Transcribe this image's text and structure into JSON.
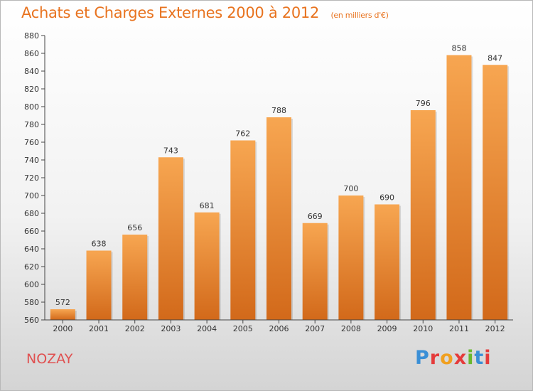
{
  "header": {
    "title": "Achats et Charges Externes 2000 à 2012",
    "subtitle": "(en milliers d'€)"
  },
  "footer": {
    "place": "NOZAY",
    "logo_text": "Proxiti"
  },
  "colors": {
    "bar_top": "#f7a651",
    "bar_bottom": "#d2691a",
    "title": "#e8731f",
    "place": "#e05050",
    "logo": [
      "#3a8fd6",
      "#e53b3b",
      "#f0a020",
      "#e53b3b",
      "#6ab82e",
      "#3a8fd6",
      "#e53b3b"
    ]
  },
  "chart_data": {
    "type": "bar",
    "categories": [
      "2000",
      "2001",
      "2002",
      "2003",
      "2004",
      "2005",
      "2006",
      "2007",
      "2008",
      "2009",
      "2010",
      "2011",
      "2012"
    ],
    "values": [
      572,
      638,
      656,
      743,
      681,
      762,
      788,
      669,
      700,
      690,
      796,
      858,
      847
    ],
    "title": "Achats et Charges Externes 2000 à 2012",
    "subtitle": "(en milliers d'€)",
    "xlabel": "",
    "ylabel": "",
    "ylim": [
      560,
      880
    ],
    "yticks": [
      560,
      580,
      600,
      620,
      640,
      660,
      680,
      700,
      720,
      740,
      760,
      780,
      800,
      820,
      840,
      860,
      880
    ],
    "grid": false,
    "data_labels": true
  }
}
